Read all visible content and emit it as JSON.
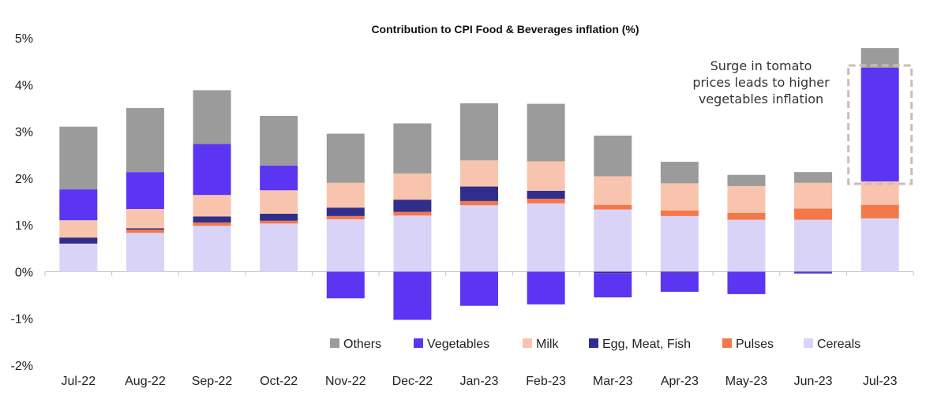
{
  "chart_data": {
    "type": "bar",
    "stacked": true,
    "title": "Contribution to CPI Food & Beverages inflation (%)",
    "xlabel": "",
    "ylabel": "",
    "ylim": [
      -2,
      5
    ],
    "y_ticks": [
      "-2%",
      "-1%",
      "0%",
      "1%",
      "2%",
      "3%",
      "4%",
      "5%"
    ],
    "categories": [
      "Jul-22",
      "Aug-22",
      "Sep-22",
      "Oct-22",
      "Nov-22",
      "Dec-22",
      "Jan-23",
      "Feb-23",
      "Mar-23",
      "Apr-23",
      "May-23",
      "Jun-23",
      "Jul-23"
    ],
    "series": [
      {
        "name": "Cereals",
        "color": "#d9d4f7",
        "values": [
          0.6,
          0.83,
          0.98,
          1.03,
          1.12,
          1.2,
          1.42,
          1.46,
          1.33,
          1.19,
          1.11,
          1.11,
          1.14
        ]
      },
      {
        "name": "Pulses",
        "color": "#f4784a",
        "values": [
          0.0,
          0.07,
          0.07,
          0.06,
          0.07,
          0.08,
          0.09,
          0.1,
          0.1,
          0.12,
          0.15,
          0.24,
          0.29
        ]
      },
      {
        "name": "Egg, Meat, Fish",
        "color": "#2f2e8c",
        "values": [
          0.13,
          0.03,
          0.13,
          0.15,
          0.18,
          0.26,
          0.31,
          0.17,
          -0.03,
          -0.02,
          0.0,
          -0.02,
          0.0
        ]
      },
      {
        "name": "Milk",
        "color": "#f9c4ad",
        "values": [
          0.37,
          0.41,
          0.46,
          0.5,
          0.53,
          0.56,
          0.56,
          0.63,
          0.61,
          0.58,
          0.57,
          0.55,
          0.5
        ]
      },
      {
        "name": "Vegetables",
        "color": "#5b35f2",
        "values": [
          0.66,
          0.79,
          1.09,
          0.53,
          -0.57,
          -1.03,
          -0.73,
          -0.7,
          -0.52,
          -0.41,
          -0.48,
          -0.02,
          2.43
        ]
      },
      {
        "name": "Others",
        "color": "#9b9b9b",
        "values": [
          1.34,
          1.37,
          1.15,
          1.06,
          1.05,
          1.07,
          1.22,
          1.23,
          0.87,
          0.46,
          0.24,
          0.23,
          0.42
        ]
      }
    ],
    "legend_order": [
      "Others",
      "Vegetables",
      "Milk",
      "Egg, Meat, Fish",
      "Pulses",
      "Cereals"
    ],
    "legend_position": "bottom-right",
    "grid": false,
    "annotation": {
      "lines": [
        "Surge in tomato",
        "prices leads to higher",
        "vegetables inflation"
      ],
      "target_category": "Jul-23",
      "target_series": "Vegetables"
    }
  }
}
